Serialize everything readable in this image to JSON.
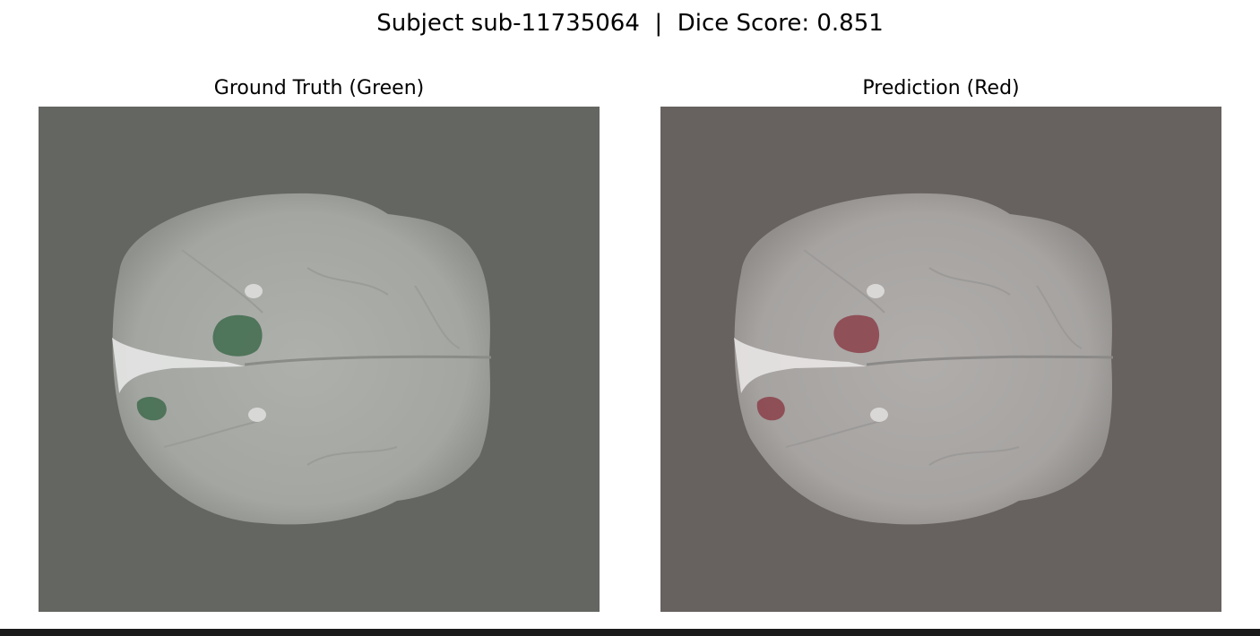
{
  "figure": {
    "title": "Subject sub-11735064  |  Dice Score: 0.851"
  },
  "panels": [
    {
      "title": "Ground Truth (Green)",
      "background": "#646662",
      "overlay_color": "#3f6b4c"
    },
    {
      "title": "Prediction (Red)",
      "background": "#67625f",
      "overlay_color": "#8a3a44"
    }
  ]
}
